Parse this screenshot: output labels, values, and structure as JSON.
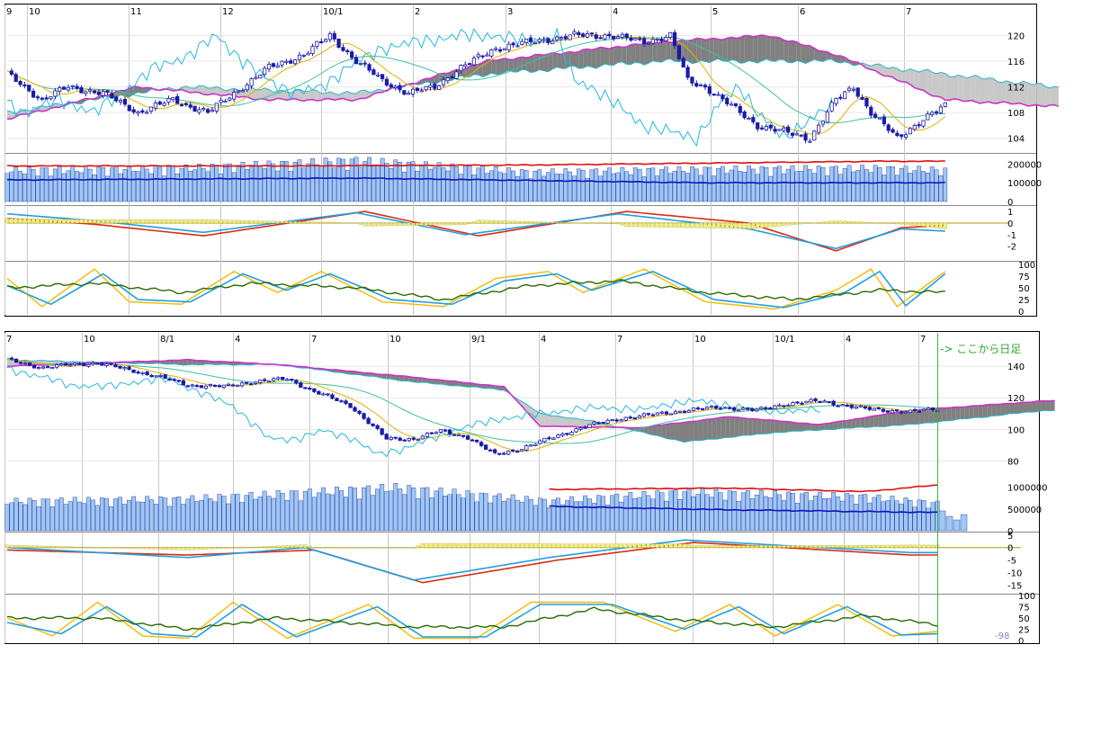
{
  "colors": {
    "up_candle_fill": "#ffffff",
    "down_candle_fill": "#1a1aa8",
    "candle_border": "#1a1aa8",
    "kumo_bull": "#c8c8c8",
    "kumo_bear": "#808080",
    "span_b_line": "#cc33cc",
    "span_a_line": "#22b8c8",
    "chikou": "#22b8e0",
    "tenkan": "#e0b000",
    "kijun": "#40c0a0",
    "volume_bar": "#9fc8f4",
    "volume_border": "#2030a0",
    "volume_ma_short": "#1010c0",
    "volume_ma_long": "#dd1010",
    "macd": "#1f9fe0",
    "macd_signal": "#dd2a10",
    "histogram": "#f5f07a",
    "stoch_k": "#f5b800",
    "stoch_d": "#1fa0e0",
    "rsi": "#2a6a00",
    "grid": "#c8c8c8",
    "marker": "#33bb33"
  },
  "chart_data": [
    {
      "type": "candlestick",
      "panel": "upper",
      "x_labels": [
        "9",
        "10",
        "11",
        "12",
        "10/1",
        "2",
        "3",
        "4",
        "5",
        "6",
        "7"
      ],
      "price": {
        "y_ticks": [
          "120",
          "116",
          "112",
          "108",
          "104"
        ],
        "ylim": [
          102,
          123
        ],
        "close_anchors": [
          [
            0,
            114
          ],
          [
            8,
            110
          ],
          [
            14,
            112
          ],
          [
            22,
            111
          ],
          [
            30,
            108
          ],
          [
            38,
            110
          ],
          [
            46,
            108
          ],
          [
            52,
            111
          ],
          [
            60,
            115
          ],
          [
            68,
            117
          ],
          [
            74,
            120
          ],
          [
            80,
            116
          ],
          [
            86,
            113
          ],
          [
            92,
            111
          ],
          [
            98,
            112
          ],
          [
            104,
            115
          ],
          [
            112,
            118
          ],
          [
            120,
            119
          ],
          [
            130,
            120
          ],
          [
            138,
            120
          ],
          [
            146,
            119
          ],
          [
            152,
            120
          ],
          [
            156,
            113
          ],
          [
            160,
            112
          ],
          [
            166,
            109
          ],
          [
            172,
            106
          ],
          [
            178,
            105
          ],
          [
            184,
            104
          ],
          [
            190,
            110
          ],
          [
            194,
            112
          ],
          [
            198,
            108
          ],
          [
            204,
            104
          ],
          [
            210,
            107
          ],
          [
            215,
            109
          ]
        ],
        "span_a_anchors": [
          [
            0,
            108
          ],
          [
            40,
            112
          ],
          [
            80,
            111
          ],
          [
            110,
            114
          ],
          [
            150,
            116
          ],
          [
            190,
            116
          ],
          [
            240,
            112
          ]
        ],
        "span_b_anchors": [
          [
            0,
            107
          ],
          [
            30,
            112
          ],
          [
            60,
            110
          ],
          [
            80,
            110
          ],
          [
            110,
            116
          ],
          [
            150,
            119
          ],
          [
            175,
            120
          ],
          [
            190,
            117
          ],
          [
            215,
            110
          ],
          [
            240,
            109
          ]
        ]
      },
      "volume": {
        "y_ticks": [
          "200000",
          "100000",
          "0"
        ],
        "ylim": [
          0,
          250000
        ],
        "value_anchors": [
          [
            0,
            160000
          ],
          [
            40,
            170000
          ],
          [
            80,
            210000
          ],
          [
            120,
            150000
          ],
          [
            160,
            165000
          ],
          [
            200,
            170000
          ],
          [
            215,
            160000
          ]
        ],
        "ma_short_anchors": [
          [
            0,
            115000
          ],
          [
            80,
            125000
          ],
          [
            160,
            100000
          ],
          [
            215,
            100000
          ]
        ],
        "ma_long_anchors": [
          [
            0,
            190000
          ],
          [
            60,
            190000
          ],
          [
            120,
            195000
          ],
          [
            160,
            205000
          ],
          [
            200,
            215000
          ],
          [
            215,
            215000
          ]
        ]
      },
      "macd": {
        "y_ticks": [
          "1",
          "0",
          "-1",
          "-2"
        ],
        "ylim": [
          -2.8,
          1.4
        ],
        "macd_anchors": [
          [
            0,
            0.8
          ],
          [
            20,
            0.2
          ],
          [
            45,
            -0.8
          ],
          [
            80,
            0.9
          ],
          [
            105,
            -1.0
          ],
          [
            140,
            0.8
          ],
          [
            170,
            -0.5
          ],
          [
            190,
            -2.2
          ],
          [
            205,
            -0.5
          ],
          [
            215,
            -0.7
          ]
        ],
        "signal_anchors": [
          [
            0,
            0.4
          ],
          [
            20,
            -0.1
          ],
          [
            45,
            -1.1
          ],
          [
            82,
            1.0
          ],
          [
            108,
            -1.1
          ],
          [
            142,
            1.0
          ],
          [
            170,
            0.0
          ],
          [
            190,
            -2.4
          ],
          [
            205,
            -0.4
          ],
          [
            215,
            -0.2
          ]
        ]
      },
      "oscillator": {
        "y_ticks": [
          "100",
          "75",
          "50",
          "25",
          "0"
        ],
        "ylim": [
          0,
          100
        ],
        "k_anchors": [
          [
            0,
            70
          ],
          [
            8,
            10
          ],
          [
            20,
            90
          ],
          [
            28,
            20
          ],
          [
            40,
            15
          ],
          [
            52,
            85
          ],
          [
            62,
            40
          ],
          [
            72,
            85
          ],
          [
            86,
            20
          ],
          [
            100,
            10
          ],
          [
            112,
            70
          ],
          [
            124,
            85
          ],
          [
            132,
            40
          ],
          [
            146,
            90
          ],
          [
            160,
            20
          ],
          [
            176,
            5
          ],
          [
            190,
            45
          ],
          [
            198,
            90
          ],
          [
            204,
            10
          ],
          [
            215,
            85
          ]
        ],
        "d_anchors": [
          [
            0,
            55
          ],
          [
            10,
            15
          ],
          [
            22,
            80
          ],
          [
            30,
            25
          ],
          [
            42,
            20
          ],
          [
            54,
            80
          ],
          [
            64,
            45
          ],
          [
            74,
            80
          ],
          [
            88,
            25
          ],
          [
            102,
            15
          ],
          [
            114,
            65
          ],
          [
            126,
            80
          ],
          [
            134,
            45
          ],
          [
            148,
            85
          ],
          [
            162,
            25
          ],
          [
            178,
            8
          ],
          [
            192,
            40
          ],
          [
            200,
            85
          ],
          [
            206,
            12
          ],
          [
            215,
            80
          ]
        ],
        "rsi_anchors": [
          [
            0,
            50
          ],
          [
            20,
            60
          ],
          [
            40,
            40
          ],
          [
            56,
            60
          ],
          [
            80,
            50
          ],
          [
            100,
            25
          ],
          [
            120,
            55
          ],
          [
            140,
            65
          ],
          [
            160,
            40
          ],
          [
            180,
            25
          ],
          [
            200,
            45
          ],
          [
            215,
            40
          ]
        ]
      }
    },
    {
      "type": "candlestick",
      "panel": "lower",
      "x_labels": [
        "7",
        "10",
        "8/1",
        "4",
        "7",
        "10",
        "9/1",
        "4",
        "7",
        "10",
        "10/1",
        "4",
        "7"
      ],
      "note": "-> ここから日足",
      "corner_label": "-98",
      "price": {
        "y_ticks": [
          "140",
          "120",
          "100",
          "80"
        ],
        "ylim": [
          70,
          152
        ],
        "close_anchors": [
          [
            0,
            144
          ],
          [
            8,
            139
          ],
          [
            14,
            141
          ],
          [
            20,
            142
          ],
          [
            28,
            137
          ],
          [
            34,
            133
          ],
          [
            40,
            128
          ],
          [
            48,
            127
          ],
          [
            54,
            130
          ],
          [
            62,
            132
          ],
          [
            68,
            124
          ],
          [
            76,
            115
          ],
          [
            84,
            94
          ],
          [
            90,
            94
          ],
          [
            96,
            99
          ],
          [
            102,
            95
          ],
          [
            108,
            84
          ],
          [
            114,
            88
          ],
          [
            120,
            94
          ],
          [
            128,
            102
          ],
          [
            136,
            107
          ],
          [
            142,
            109
          ],
          [
            150,
            112
          ],
          [
            158,
            114
          ],
          [
            166,
            112
          ],
          [
            172,
            116
          ],
          [
            180,
            118
          ],
          [
            190,
            113
          ],
          [
            200,
            111
          ],
          [
            206,
            113
          ]
        ],
        "span_a_anchors": [
          [
            0,
            144
          ],
          [
            40,
            141
          ],
          [
            60,
            141
          ],
          [
            90,
            130
          ],
          [
            110,
            125
          ],
          [
            118,
            110
          ],
          [
            130,
            105
          ],
          [
            150,
            92
          ],
          [
            170,
            98
          ],
          [
            200,
            103
          ],
          [
            230,
            112
          ]
        ],
        "span_b_anchors": [
          [
            0,
            140
          ],
          [
            40,
            144
          ],
          [
            60,
            141
          ],
          [
            90,
            133
          ],
          [
            110,
            127
          ],
          [
            118,
            102
          ],
          [
            140,
            101
          ],
          [
            160,
            108
          ],
          [
            180,
            103
          ],
          [
            200,
            112
          ],
          [
            230,
            118
          ]
        ]
      },
      "volume": {
        "y_ticks": [
          "1000000",
          "500000",
          "0"
        ],
        "ylim": [
          0,
          1200000
        ],
        "value_anchors": [
          [
            0,
            650000
          ],
          [
            40,
            700000
          ],
          [
            86,
            950000
          ],
          [
            120,
            650000
          ],
          [
            150,
            850000
          ],
          [
            190,
            750000
          ],
          [
            206,
            600000
          ]
        ],
        "ma_short_anchors": [
          [
            120,
            560000
          ],
          [
            160,
            480000
          ],
          [
            206,
            420000
          ]
        ],
        "ma_long_anchors": [
          [
            120,
            950000
          ],
          [
            160,
            980000
          ],
          [
            190,
            900000
          ],
          [
            206,
            1050000
          ]
        ]
      },
      "macd": {
        "y_ticks": [
          "5",
          "0",
          "-5",
          "-10",
          "-15"
        ],
        "ylim": [
          -17,
          6
        ],
        "macd_anchors": [
          [
            0,
            0
          ],
          [
            40,
            -4
          ],
          [
            66,
            0
          ],
          [
            90,
            -13
          ],
          [
            120,
            -4
          ],
          [
            150,
            3
          ],
          [
            170,
            1
          ],
          [
            200,
            -2
          ],
          [
            206,
            -2
          ]
        ],
        "signal_anchors": [
          [
            0,
            -1
          ],
          [
            40,
            -3
          ],
          [
            68,
            -1
          ],
          [
            92,
            -14
          ],
          [
            122,
            -5
          ],
          [
            152,
            2
          ],
          [
            172,
            0
          ],
          [
            200,
            -3
          ],
          [
            206,
            -3
          ]
        ]
      },
      "oscillator": {
        "y_ticks": [
          "100",
          "75",
          "50",
          "25",
          "0"
        ],
        "ylim": [
          0,
          100
        ],
        "k_anchors": [
          [
            0,
            50
          ],
          [
            10,
            10
          ],
          [
            20,
            85
          ],
          [
            30,
            10
          ],
          [
            40,
            5
          ],
          [
            50,
            85
          ],
          [
            62,
            5
          ],
          [
            80,
            80
          ],
          [
            90,
            5
          ],
          [
            104,
            5
          ],
          [
            116,
            85
          ],
          [
            132,
            85
          ],
          [
            148,
            20
          ],
          [
            160,
            80
          ],
          [
            170,
            10
          ],
          [
            184,
            80
          ],
          [
            196,
            10
          ],
          [
            206,
            20
          ]
        ],
        "d_anchors": [
          [
            0,
            40
          ],
          [
            12,
            15
          ],
          [
            22,
            75
          ],
          [
            32,
            15
          ],
          [
            42,
            8
          ],
          [
            52,
            80
          ],
          [
            64,
            8
          ],
          [
            82,
            75
          ],
          [
            92,
            8
          ],
          [
            106,
            8
          ],
          [
            118,
            80
          ],
          [
            134,
            80
          ],
          [
            150,
            25
          ],
          [
            162,
            75
          ],
          [
            172,
            15
          ],
          [
            186,
            75
          ],
          [
            198,
            12
          ],
          [
            206,
            15
          ]
        ],
        "rsi_anchors": [
          [
            0,
            50
          ],
          [
            20,
            50
          ],
          [
            40,
            25
          ],
          [
            60,
            50
          ],
          [
            90,
            30
          ],
          [
            110,
            30
          ],
          [
            130,
            70
          ],
          [
            150,
            45
          ],
          [
            170,
            30
          ],
          [
            190,
            55
          ],
          [
            206,
            35
          ]
        ]
      }
    }
  ]
}
